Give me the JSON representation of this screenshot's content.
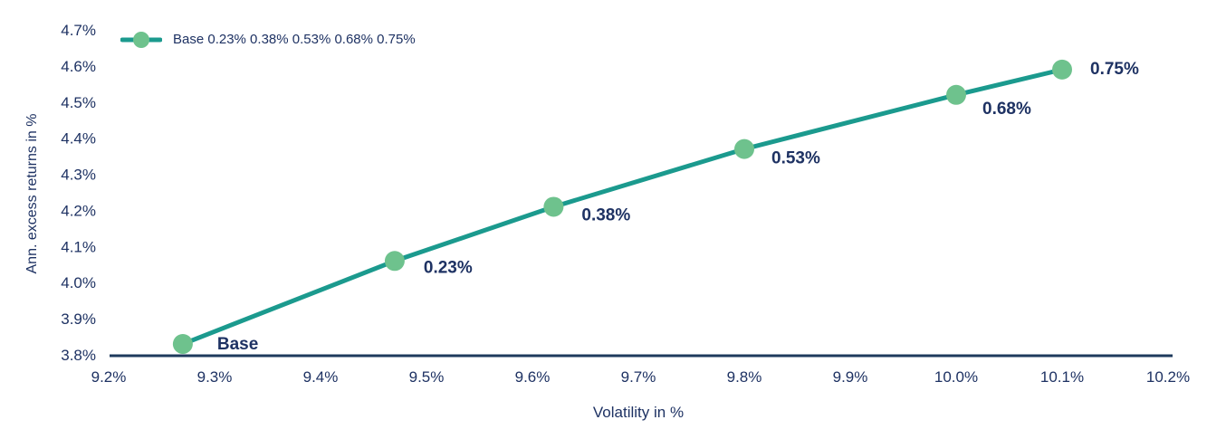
{
  "chart_data": {
    "type": "line",
    "xlabel": "Volatility in %",
    "ylabel": "Ann. excess returns in %",
    "xlim": [
      9.2,
      10.2
    ],
    "ylim": [
      3.8,
      4.7
    ],
    "grid": false,
    "legend_position": "top-left",
    "legend_swatch": "teal-line-with-green-circle",
    "x_ticks": {
      "values": [
        9.2,
        9.3,
        9.4,
        9.5,
        9.6,
        9.7,
        9.8,
        9.9,
        10.0,
        10.1,
        10.2
      ],
      "labels": [
        "9.2%",
        "9.3%",
        "9.4%",
        "9.5%",
        "9.6%",
        "9.7%",
        "9.8%",
        "9.9%",
        "10.0%",
        "10.1%",
        "10.2%"
      ]
    },
    "y_ticks": {
      "values": [
        3.8,
        3.9,
        4.0,
        4.1,
        4.2,
        4.3,
        4.4,
        4.5,
        4.6,
        4.7
      ],
      "labels": [
        "3.8%",
        "3.9%",
        "4.0%",
        "4.1%",
        "4.2%",
        "4.3%",
        "4.4%",
        "4.5%",
        "4.6%",
        "4.7%"
      ]
    },
    "series": [
      {
        "name": "Base 0.23% 0.38% 0.53% 0.68% 0.75%",
        "points": [
          {
            "x": 9.27,
            "y": 3.83,
            "label": "Base"
          },
          {
            "x": 9.47,
            "y": 4.06,
            "label": "0.23%"
          },
          {
            "x": 9.62,
            "y": 4.21,
            "label": "0.38%"
          },
          {
            "x": 9.8,
            "y": 4.37,
            "label": "0.53%"
          },
          {
            "x": 10.0,
            "y": 4.52,
            "label": "0.68%"
          },
          {
            "x": 10.1,
            "y": 4.59,
            "label": "0.75%"
          }
        ],
        "label_offsets": [
          [
            38,
            -1
          ],
          [
            32,
            6
          ],
          [
            31,
            8
          ],
          [
            30,
            9
          ],
          [
            29,
            14
          ],
          [
            31,
            -2
          ]
        ]
      }
    ],
    "colors": {
      "line": "#1b9a8e",
      "marker": "#6ec28d",
      "text": "#1e3263",
      "axis_line": "#1e3a5c"
    }
  }
}
